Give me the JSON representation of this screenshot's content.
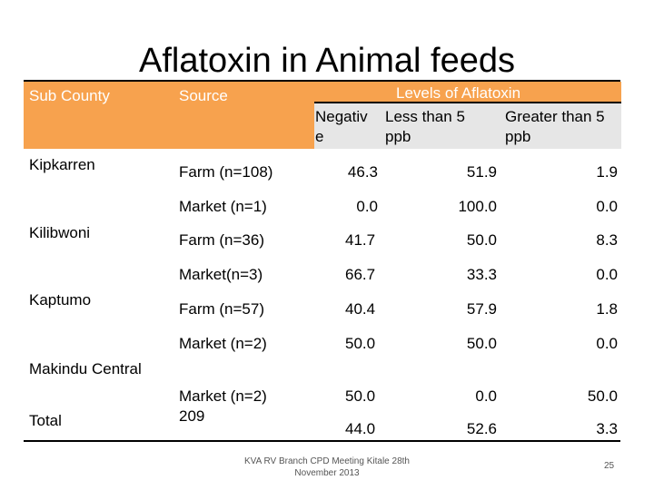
{
  "slide": {
    "title": "Aflatoxin in Animal feeds",
    "header": {
      "sub_county": "Sub County",
      "source": "Source",
      "levels": "Levels of Aflatoxin",
      "negative": "Negativ\ne",
      "less_than_5": "Less than 5\nppb",
      "greater_than_5": "Greater than 5\nppb"
    },
    "sub_counties": [
      "Kipkarren",
      "Kilibwoni",
      "Kaptumo",
      "Makindu Central",
      "Total"
    ],
    "rows": [
      {
        "source": "Farm (n=108)",
        "negative": "46.3",
        "less_than_5": "51.9",
        "greater_than_5": "1.9"
      },
      {
        "source": "Market (n=1)",
        "negative": "0.0",
        "less_than_5": "100.0",
        "greater_than_5": "0.0"
      },
      {
        "source": "Farm (n=36)",
        "negative": "41.7",
        "less_than_5": "50.0",
        "greater_than_5": "8.3"
      },
      {
        "source": "Market(n=3)",
        "negative": "66.7",
        "less_than_5": "33.3",
        "greater_than_5": "0.0"
      },
      {
        "source": "Farm (n=57)",
        "negative": "40.4",
        "less_than_5": "57.9",
        "greater_than_5": "1.8"
      },
      {
        "source": "Market (n=2)",
        "negative": "50.0",
        "less_than_5": "50.0",
        "greater_than_5": "0.0"
      },
      {
        "source": "Market (n=2)\n209",
        "negative": "50.0",
        "less_than_5": "0.0",
        "greater_than_5": "50.0"
      },
      {
        "source": "",
        "negative": "44.0",
        "less_than_5": "52.6",
        "greater_than_5": "3.3"
      }
    ],
    "footer": "KVA RV Branch CPD Meeting Kitale 28th\nNovember 2013",
    "slide_number": "25",
    "colors": {
      "header_orange": "#F7A24E",
      "header_grey": "#E6E6E6",
      "rule": "#000000"
    }
  }
}
